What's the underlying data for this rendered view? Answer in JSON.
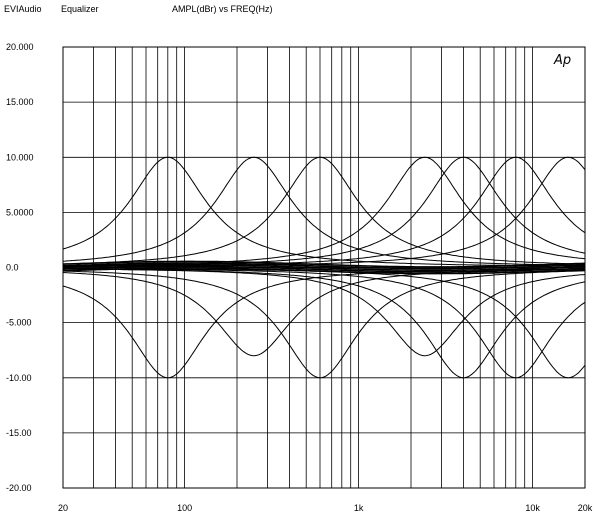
{
  "header": {
    "app": "EVIAudio",
    "title": "Equalizer",
    "axes_title": "AMPL(dBr)   vs    FREQ(Hz)"
  },
  "logo_text": "Ap",
  "chart_data": {
    "type": "line",
    "x_scale": "log",
    "xlim": [
      20,
      20000
    ],
    "ylim": [
      -20,
      20
    ],
    "grid": true,
    "x_ticks": [
      20,
      100,
      1000,
      10000,
      20000
    ],
    "x_tick_labels": [
      "20",
      "100",
      "1k",
      "10k",
      "20k"
    ],
    "y_ticks": [
      20,
      15,
      10,
      5,
      0,
      -5,
      -10,
      -15,
      -20
    ],
    "y_tick_labels": [
      "20.000",
      "15.000",
      "10.000",
      "5.0000",
      "0.0",
      "-5.000",
      "-10.00",
      "-15.00",
      "-20.00"
    ],
    "series": [
      {
        "center_hz": 80,
        "peak_db": 10
      },
      {
        "center_hz": 80,
        "peak_db": -10
      },
      {
        "center_hz": 250,
        "peak_db": 10
      },
      {
        "center_hz": 250,
        "peak_db": -8
      },
      {
        "center_hz": 600,
        "peak_db": 10
      },
      {
        "center_hz": 600,
        "peak_db": -10
      },
      {
        "center_hz": 2400,
        "peak_db": 10
      },
      {
        "center_hz": 2400,
        "peak_db": -8
      },
      {
        "center_hz": 4000,
        "peak_db": 10
      },
      {
        "center_hz": 4000,
        "peak_db": -10
      },
      {
        "center_hz": 8000,
        "peak_db": 10
      },
      {
        "center_hz": 8000,
        "peak_db": -10
      },
      {
        "center_hz": 16000,
        "peak_db": 10
      },
      {
        "center_hz": 16000,
        "peak_db": -10
      }
    ],
    "flat_series_db": [
      0.3,
      0.15,
      0.0,
      -0.15,
      -0.3
    ]
  }
}
